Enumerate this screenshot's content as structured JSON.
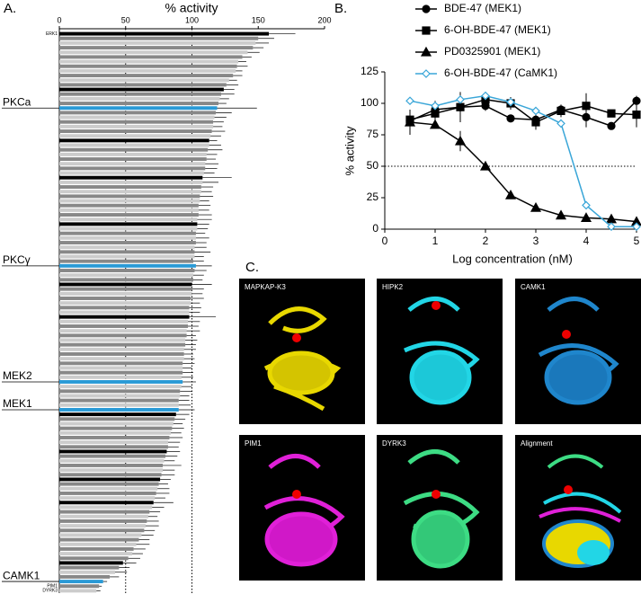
{
  "chart_data": [
    {
      "type": "bar",
      "panel_label": "A.",
      "orientation": "horizontal",
      "xlabel": "% activity",
      "xlim": [
        0,
        200
      ],
      "xticks": [
        0,
        50,
        100,
        150,
        200
      ],
      "reference_lines": [
        50,
        100
      ],
      "highlight_color": "#2a9ad6",
      "categories": [
        "ERK1",
        null,
        null,
        null,
        null,
        null,
        null,
        null,
        null,
        null,
        null,
        null,
        null,
        null,
        null,
        null,
        "PKCa",
        null,
        null,
        null,
        null,
        null,
        null,
        null,
        null,
        null,
        null,
        null,
        null,
        null,
        null,
        null,
        null,
        null,
        null,
        null,
        null,
        null,
        null,
        null,
        null,
        null,
        null,
        null,
        null,
        null,
        null,
        null,
        null,
        null,
        "PKCγ",
        null,
        null,
        null,
        null,
        null,
        null,
        null,
        null,
        null,
        null,
        null,
        null,
        null,
        null,
        null,
        null,
        null,
        null,
        null,
        null,
        null,
        null,
        null,
        null,
        "MEK2",
        null,
        null,
        null,
        null,
        null,
        "MEK1",
        null,
        null,
        null,
        null,
        null,
        null,
        null,
        null,
        null,
        null,
        null,
        null,
        null,
        null,
        null,
        null,
        null,
        null,
        null,
        null,
        null,
        null,
        null,
        null,
        null,
        null,
        null,
        null,
        null,
        null,
        null,
        null,
        null,
        null,
        null,
        null,
        "CAMK1",
        "PIM1",
        "DYRK3"
      ],
      "values": [
        158,
        150,
        148,
        146,
        142,
        138,
        135,
        134,
        133,
        131,
        128,
        126,
        124,
        122,
        121,
        120,
        119,
        118,
        117,
        116,
        116,
        115,
        114,
        113,
        113,
        112,
        111,
        111,
        110,
        110,
        109,
        108,
        108,
        107,
        107,
        106,
        106,
        105,
        105,
        105,
        104,
        104,
        104,
        103,
        103,
        103,
        102,
        102,
        102,
        101,
        103,
        102,
        101,
        101,
        100,
        100,
        100,
        99,
        99,
        98,
        98,
        98,
        97,
        97,
        96,
        96,
        95,
        95,
        94,
        94,
        94,
        93,
        93,
        93,
        92,
        93,
        92,
        91,
        91,
        90,
        90,
        90,
        88,
        87,
        86,
        85,
        84,
        83,
        82,
        82,
        81,
        80,
        79,
        78,
        78,
        77,
        76,
        75,
        74,
        73,
        72,
        71,
        70,
        68,
        67,
        66,
        65,
        64,
        62,
        60,
        58,
        56,
        55,
        52,
        48,
        45,
        42,
        38,
        33,
        30,
        28
      ],
      "errors": [
        20,
        12,
        10,
        8,
        9,
        7,
        6,
        8,
        5,
        7,
        6,
        9,
        8,
        10,
        7,
        6,
        30,
        12,
        9,
        8,
        7,
        10,
        8,
        6,
        9,
        11,
        8,
        7,
        10,
        9,
        8,
        22,
        12,
        9,
        8,
        10,
        7,
        9,
        8,
        10,
        11,
        9,
        8,
        7,
        10,
        8,
        9,
        12,
        7,
        8,
        12,
        9,
        8,
        7,
        15,
        9,
        8,
        10,
        7,
        9,
        8,
        20,
        9,
        8,
        10,
        7,
        9,
        8,
        9,
        7,
        8,
        9,
        7,
        8,
        9,
        10,
        8,
        9,
        7,
        8,
        9,
        12,
        10,
        8,
        7,
        9,
        8,
        10,
        9,
        8,
        10,
        9,
        8,
        14,
        9,
        10,
        8,
        7,
        9,
        10,
        8,
        15,
        9,
        8,
        7,
        9,
        10,
        8,
        9,
        8,
        10,
        9,
        8,
        9,
        10,
        8,
        9,
        7,
        3,
        2,
        3
      ],
      "colors": [
        "#000",
        "#888",
        "#ccc",
        "#888",
        "#ccc",
        "#888",
        "#ccc",
        "#888",
        "#ccc",
        "#888",
        "#ccc",
        "#888",
        "#000",
        "#888",
        "#ccc",
        "#888",
        "#2a9ad6",
        "#888",
        "#ccc",
        "#888",
        "#ccc",
        "#888",
        "#ccc",
        "#000",
        "#ccc",
        "#888",
        "#ccc",
        "#888",
        "#ccc",
        "#888",
        "#ccc",
        "#000",
        "#ccc",
        "#888",
        "#ccc",
        "#888",
        "#ccc",
        "#888",
        "#ccc",
        "#888",
        "#ccc",
        "#000",
        "#ccc",
        "#888",
        "#ccc",
        "#888",
        "#ccc",
        "#888",
        "#ccc",
        "#888",
        "#2a9ad6",
        "#888",
        "#ccc",
        "#888",
        "#000",
        "#888",
        "#ccc",
        "#888",
        "#ccc",
        "#888",
        "#ccc",
        "#000",
        "#ccc",
        "#888",
        "#ccc",
        "#888",
        "#ccc",
        "#888",
        "#ccc",
        "#888",
        "#ccc",
        "#888",
        "#ccc",
        "#888",
        "#ccc",
        "#2a9ad6",
        "#ccc",
        "#888",
        "#ccc",
        "#888",
        "#ccc",
        "#2a9ad6",
        "#000",
        "#888",
        "#ccc",
        "#888",
        "#ccc",
        "#888",
        "#ccc",
        "#888",
        "#000",
        "#888",
        "#ccc",
        "#888",
        "#ccc",
        "#888",
        "#000",
        "#888",
        "#ccc",
        "#888",
        "#ccc",
        "#000",
        "#ccc",
        "#888",
        "#ccc",
        "#888",
        "#ccc",
        "#888",
        "#ccc",
        "#888",
        "#ccc",
        "#888",
        "#ccc",
        "#888",
        "#000",
        "#888",
        "#ccc",
        "#888",
        "#2a9ad6",
        "#888",
        "#ccc"
      ]
    },
    {
      "type": "line",
      "panel_label": "B.",
      "xlabel": "Log concentration (nM)",
      "ylabel": "% activity",
      "x": [
        0.5,
        1,
        1.5,
        2,
        2.5,
        3,
        3.5,
        4,
        4.5,
        5
      ],
      "xlim": [
        0,
        5
      ],
      "xticks": [
        0,
        1,
        2,
        3,
        4,
        5
      ],
      "ylim": [
        0,
        125
      ],
      "yticks": [
        0,
        25,
        50,
        75,
        100,
        125
      ],
      "reference_line": 50,
      "series": [
        {
          "name": "BDE-47 (MEK1)",
          "color": "#000000",
          "marker": "circle",
          "values": [
            86,
            95,
            97,
            98,
            88,
            87,
            95,
            89,
            82,
            102
          ],
          "errors": [
            4,
            6,
            5,
            4,
            3,
            6,
            3,
            8,
            2,
            4
          ]
        },
        {
          "name": "6-OH-BDE-47 (MEK1)",
          "color": "#000000",
          "marker": "square",
          "values": [
            87,
            92,
            97,
            103,
            100,
            85,
            94,
            98,
            92,
            91
          ],
          "errors": [
            3,
            10,
            12,
            6,
            5,
            6,
            5,
            10,
            2,
            10
          ]
        },
        {
          "name": "PD0325901 (MEK1)",
          "color": "#000000",
          "marker": "triangle",
          "values": [
            85,
            83,
            70,
            50,
            27,
            17,
            11,
            9,
            8,
            6
          ],
          "errors": [
            10,
            2,
            8,
            2,
            2,
            2,
            1,
            1,
            1,
            1
          ]
        },
        {
          "name": "6-OH-BDE-47 (CaMK1)",
          "color": "#3aa6d8",
          "marker": "diamond",
          "values": [
            102,
            98,
            103,
            106,
            101,
            94,
            84,
            19,
            2,
            2
          ],
          "errors": [
            3,
            2,
            3,
            3,
            2,
            2,
            3,
            2,
            1,
            1
          ]
        }
      ]
    }
  ],
  "structures": {
    "panel_label": "C.",
    "panels": [
      {
        "label": "MAPKAP-K3"
      },
      {
        "label": "HIPK2"
      },
      {
        "label": "CAMK1"
      },
      {
        "label": "PIM1"
      },
      {
        "label": "DYRK3"
      },
      {
        "label": "Alignment"
      }
    ]
  }
}
